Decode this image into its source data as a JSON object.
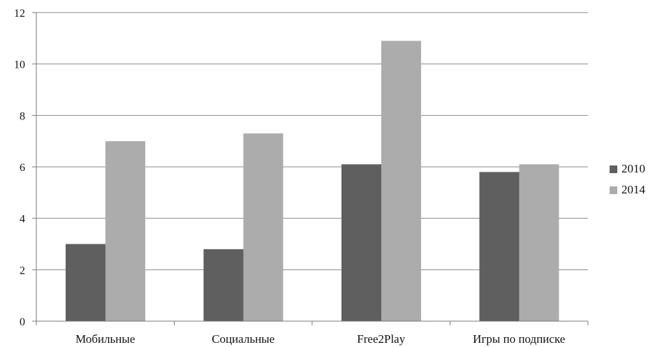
{
  "chart_data": {
    "type": "bar",
    "categories": [
      "Мобильные",
      "Социальные",
      "Free2Play",
      "Игры по подписке"
    ],
    "series": [
      {
        "name": "2010",
        "values": [
          3.0,
          2.8,
          6.1,
          5.8
        ],
        "color": "#5f5f5f"
      },
      {
        "name": "2014",
        "values": [
          7.0,
          7.3,
          10.9,
          6.1
        ],
        "color": "#acacac"
      }
    ],
    "title": "",
    "xlabel": "",
    "ylabel": "",
    "ylim": [
      0,
      12
    ],
    "yticks": [
      0,
      2,
      4,
      6,
      8,
      10,
      12
    ],
    "grid": true,
    "legend_position": "right"
  }
}
